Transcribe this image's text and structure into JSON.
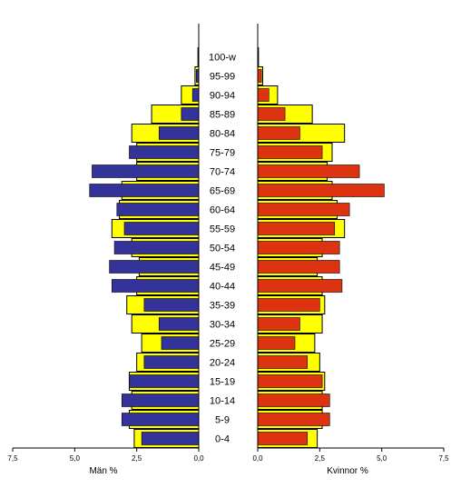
{
  "chart_data": {
    "type": "bar",
    "orientation": "horizontal",
    "layout": "population-pyramid",
    "categories": [
      "0-4",
      "5-9",
      "10-14",
      "15-19",
      "20-24",
      "25-29",
      "30-34",
      "35-39",
      "40-44",
      "45-49",
      "50-54",
      "55-59",
      "60-64",
      "65-69",
      "70-74",
      "75-79",
      "80-84",
      "85-89",
      "90-94",
      "95-99",
      "100-w"
    ],
    "left_panel": {
      "xlabel": "Män %",
      "ticks": [
        "7,5",
        "5,0",
        "2,5",
        "0,0"
      ],
      "xlim": [
        0,
        7.5
      ],
      "direction": "reversed",
      "series": [
        {
          "color": "#ffff00",
          "values": [
            2.6,
            2.8,
            2.7,
            2.8,
            2.5,
            2.3,
            2.7,
            2.9,
            2.5,
            2.4,
            2.7,
            3.5,
            3.2,
            3.1,
            2.5,
            2.5,
            2.7,
            1.9,
            0.7,
            0.15,
            0.03
          ]
        },
        {
          "color": "#333399",
          "values": [
            2.3,
            3.1,
            3.1,
            2.8,
            2.2,
            1.5,
            1.6,
            2.2,
            3.5,
            3.6,
            3.4,
            3.0,
            3.3,
            4.4,
            4.3,
            2.8,
            1.6,
            0.7,
            0.25,
            0.1,
            0.03
          ]
        }
      ]
    },
    "right_panel": {
      "xlabel": "Kvinnor %",
      "ticks": [
        "0,0",
        "2,5",
        "5,0",
        "7,5"
      ],
      "xlim": [
        0,
        7.5
      ],
      "series": [
        {
          "color": "#ffff00",
          "values": [
            2.4,
            2.6,
            2.6,
            2.7,
            2.5,
            2.3,
            2.6,
            2.7,
            2.6,
            2.4,
            2.6,
            3.5,
            3.2,
            3.0,
            2.8,
            3.0,
            3.5,
            2.2,
            0.8,
            0.2,
            0.03
          ]
        },
        {
          "color": "#dd3311",
          "values": [
            2.0,
            2.9,
            2.9,
            2.6,
            2.0,
            1.5,
            1.7,
            2.5,
            3.4,
            3.3,
            3.3,
            3.1,
            3.7,
            5.1,
            4.1,
            2.6,
            1.7,
            1.1,
            0.45,
            0.15,
            0.03
          ]
        }
      ]
    }
  }
}
